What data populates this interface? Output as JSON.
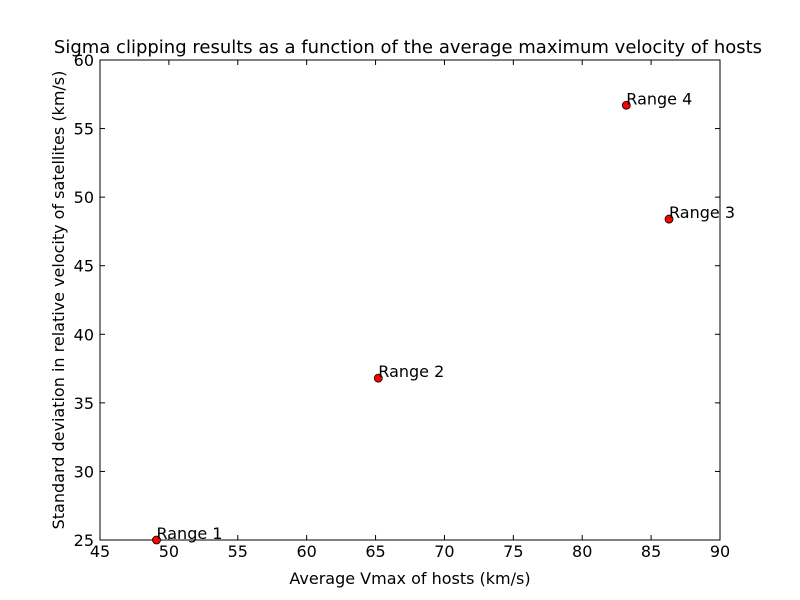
{
  "chart_data": {
    "type": "scatter",
    "title": "Sigma clipping results as a function of the average maximum velocity of hosts",
    "xlabel": "Average Vmax of hosts (km/s)",
    "ylabel": "Standard deviation in relative velocity of satellites (km/s)",
    "xlim": [
      45,
      90
    ],
    "ylim": [
      25,
      60
    ],
    "xticks": [
      45,
      50,
      55,
      60,
      65,
      70,
      75,
      80,
      85,
      90
    ],
    "yticks": [
      25,
      30,
      35,
      40,
      45,
      50,
      55,
      60
    ],
    "grid": false,
    "marker_color": "#ff0000",
    "points": [
      {
        "x": 49.1,
        "y": 25.0,
        "label": "Range 1"
      },
      {
        "x": 65.2,
        "y": 36.8,
        "label": "Range 2"
      },
      {
        "x": 86.3,
        "y": 48.4,
        "label": "Range 3"
      },
      {
        "x": 83.2,
        "y": 56.7,
        "label": "Range 4"
      }
    ]
  }
}
